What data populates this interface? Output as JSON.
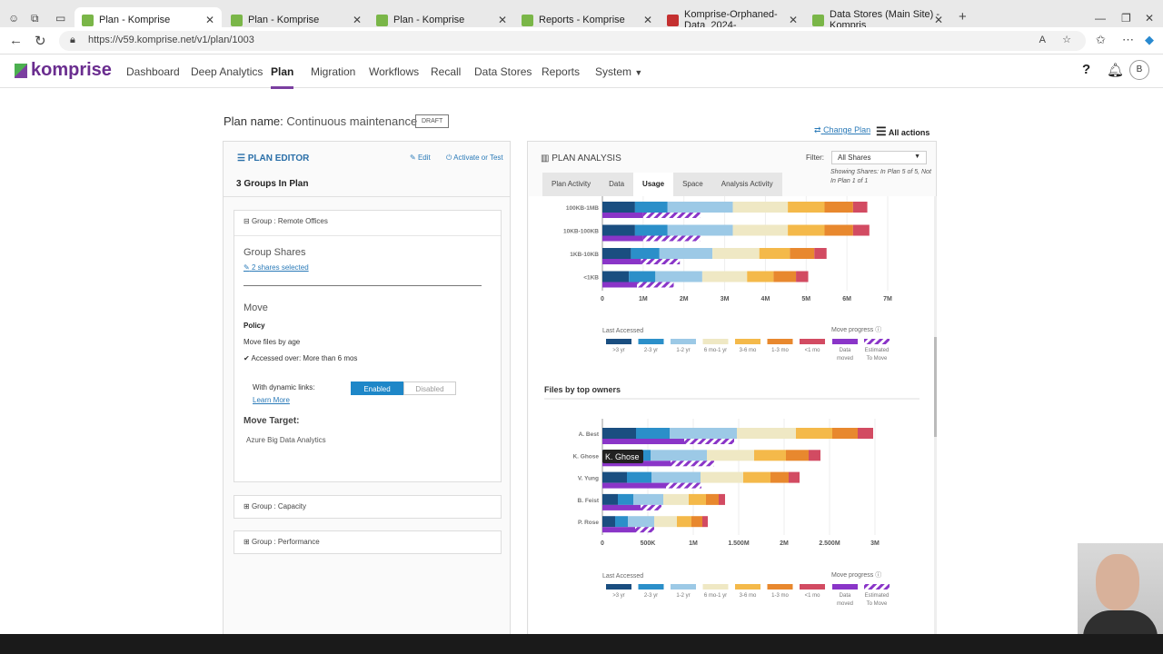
{
  "browser": {
    "tabs": [
      {
        "label": "Plan - Komprise",
        "active": true
      },
      {
        "label": "Plan - Komprise",
        "active": false
      },
      {
        "label": "Plan - Komprise",
        "active": false
      },
      {
        "label": "Reports - Komprise",
        "active": false
      },
      {
        "label": "Komprise-Orphaned-Data_2024-",
        "active": false
      },
      {
        "label": "Data Stores (Main Site) - Kompris",
        "active": false
      }
    ],
    "url": "https://v59.komprise.net/v1/plan/1003"
  },
  "app": {
    "logo": "komprise",
    "nav": [
      "Dashboard",
      "Deep Analytics",
      "Plan",
      "Migration",
      "Workflows",
      "Recall",
      "Data Stores",
      "Reports",
      "System"
    ],
    "active_nav": "Plan",
    "avatar": "B"
  },
  "plan": {
    "name_label": "Plan name:",
    "name_value": "Continuous maintenance",
    "status": "DRAFT",
    "change_plan": "Change Plan",
    "all_actions": "All actions"
  },
  "editor": {
    "title": "PLAN EDITOR",
    "edit": "Edit",
    "activate": "Activate or Test",
    "groups_count": "3 Groups In Plan",
    "group1": "Group : Remote Offices",
    "group_shares_title": "Group Shares",
    "shares_selected": "2 shares selected",
    "move_title": "Move",
    "policy": "Policy",
    "policy_value": "Move files by age",
    "accessed": "Accessed over: More than 6 mos",
    "dynamic_links": "With dynamic links:",
    "learn_more": "Learn More",
    "enabled": "Enabled",
    "disabled": "Disabled",
    "move_target": "Move Target:",
    "move_target_value": "Azure Big Data Analytics",
    "group2": "Group : Capacity",
    "group3": "Group : Performance"
  },
  "analysis": {
    "title": "PLAN ANALYSIS",
    "filter_label": "Filter:",
    "filter_value": "All Shares",
    "showing": "Showing Shares: In Plan 5 of 5, Not In Plan 1 of 1",
    "tabs": [
      "Plan Activity",
      "Data",
      "Usage",
      "Space",
      "Analysis Activity"
    ],
    "active_tab": "Usage",
    "section2_title": "Files by top owners",
    "tooltip": "K. Ghose",
    "cut_off_heading": "Files by top owners"
  },
  "legend": {
    "last_accessed": "Last Accessed",
    "move_progress": "Move progress",
    "items": [
      ">3 yr",
      "2-3 yr",
      "1-2 yr",
      "6 mo-1 yr",
      "3-6 mo",
      "1-3 mo",
      "<1 mo"
    ],
    "colors": [
      "#1a4e80",
      "#2b8fc9",
      "#9cc9e6",
      "#efe8c4",
      "#f4b94a",
      "#e8882e",
      "#d24b62"
    ],
    "data_moved": "Data moved",
    "to_move": "Estimated To Move",
    "moved_color": "#8a35c8"
  },
  "chart_data": [
    {
      "type": "bar",
      "orientation": "horizontal",
      "stacked": true,
      "title": "",
      "categories": [
        "100KB-1MB",
        "10KB-100KB",
        "1KB-10KB",
        "<1KB"
      ],
      "xticks": [
        "0",
        "1M",
        "2M",
        "3M",
        "4M",
        "5M",
        "6M",
        "7M"
      ],
      "xlim": [
        0,
        7
      ],
      "series": [
        {
          "name": ">3 yr",
          "values": [
            0.8,
            0.8,
            0.7,
            0.65
          ]
        },
        {
          "name": "2-3 yr",
          "values": [
            0.8,
            0.8,
            0.7,
            0.65
          ]
        },
        {
          "name": "1-2 yr",
          "values": [
            1.6,
            1.6,
            1.3,
            1.15
          ]
        },
        {
          "name": "6 mo-1 yr",
          "values": [
            1.35,
            1.35,
            1.15,
            1.1
          ]
        },
        {
          "name": "3-6 mo",
          "values": [
            0.9,
            0.9,
            0.75,
            0.65
          ]
        },
        {
          "name": "1-3 mo",
          "values": [
            0.7,
            0.7,
            0.6,
            0.55
          ]
        },
        {
          "name": "<1 mo",
          "values": [
            0.35,
            0.4,
            0.3,
            0.3
          ]
        }
      ],
      "moved": [
        1.0,
        1.0,
        0.95,
        0.85
      ],
      "to_move": [
        2.4,
        2.4,
        1.9,
        1.75
      ]
    },
    {
      "type": "bar",
      "orientation": "horizontal",
      "stacked": true,
      "title": "Files by top owners",
      "categories": [
        "A. Best",
        "K. Ghose",
        "V. Yung",
        "B. Feist",
        "P. Rose"
      ],
      "xticks": [
        "0",
        "500K",
        "1M",
        "1.500M",
        "2M",
        "2.500M",
        "3M"
      ],
      "xlim": [
        0,
        3
      ],
      "series": [
        {
          "name": ">3 yr",
          "values": [
            0.37,
            0.28,
            0.27,
            0.17,
            0.14
          ]
        },
        {
          "name": "2-3 yr",
          "values": [
            0.37,
            0.25,
            0.27,
            0.17,
            0.14
          ]
        },
        {
          "name": "1-2 yr",
          "values": [
            0.74,
            0.62,
            0.54,
            0.33,
            0.29
          ]
        },
        {
          "name": "6 mo-1 yr",
          "values": [
            0.65,
            0.52,
            0.47,
            0.28,
            0.25
          ]
        },
        {
          "name": "3-6 mo",
          "values": [
            0.4,
            0.35,
            0.3,
            0.19,
            0.16
          ]
        },
        {
          "name": "1-3 mo",
          "values": [
            0.28,
            0.25,
            0.2,
            0.14,
            0.12
          ]
        },
        {
          "name": "<1 mo",
          "values": [
            0.17,
            0.13,
            0.12,
            0.07,
            0.06
          ]
        }
      ],
      "moved": [
        0.9,
        0.75,
        0.7,
        0.42,
        0.36
      ],
      "to_move": [
        1.45,
        1.23,
        1.09,
        0.65,
        0.57
      ]
    }
  ]
}
